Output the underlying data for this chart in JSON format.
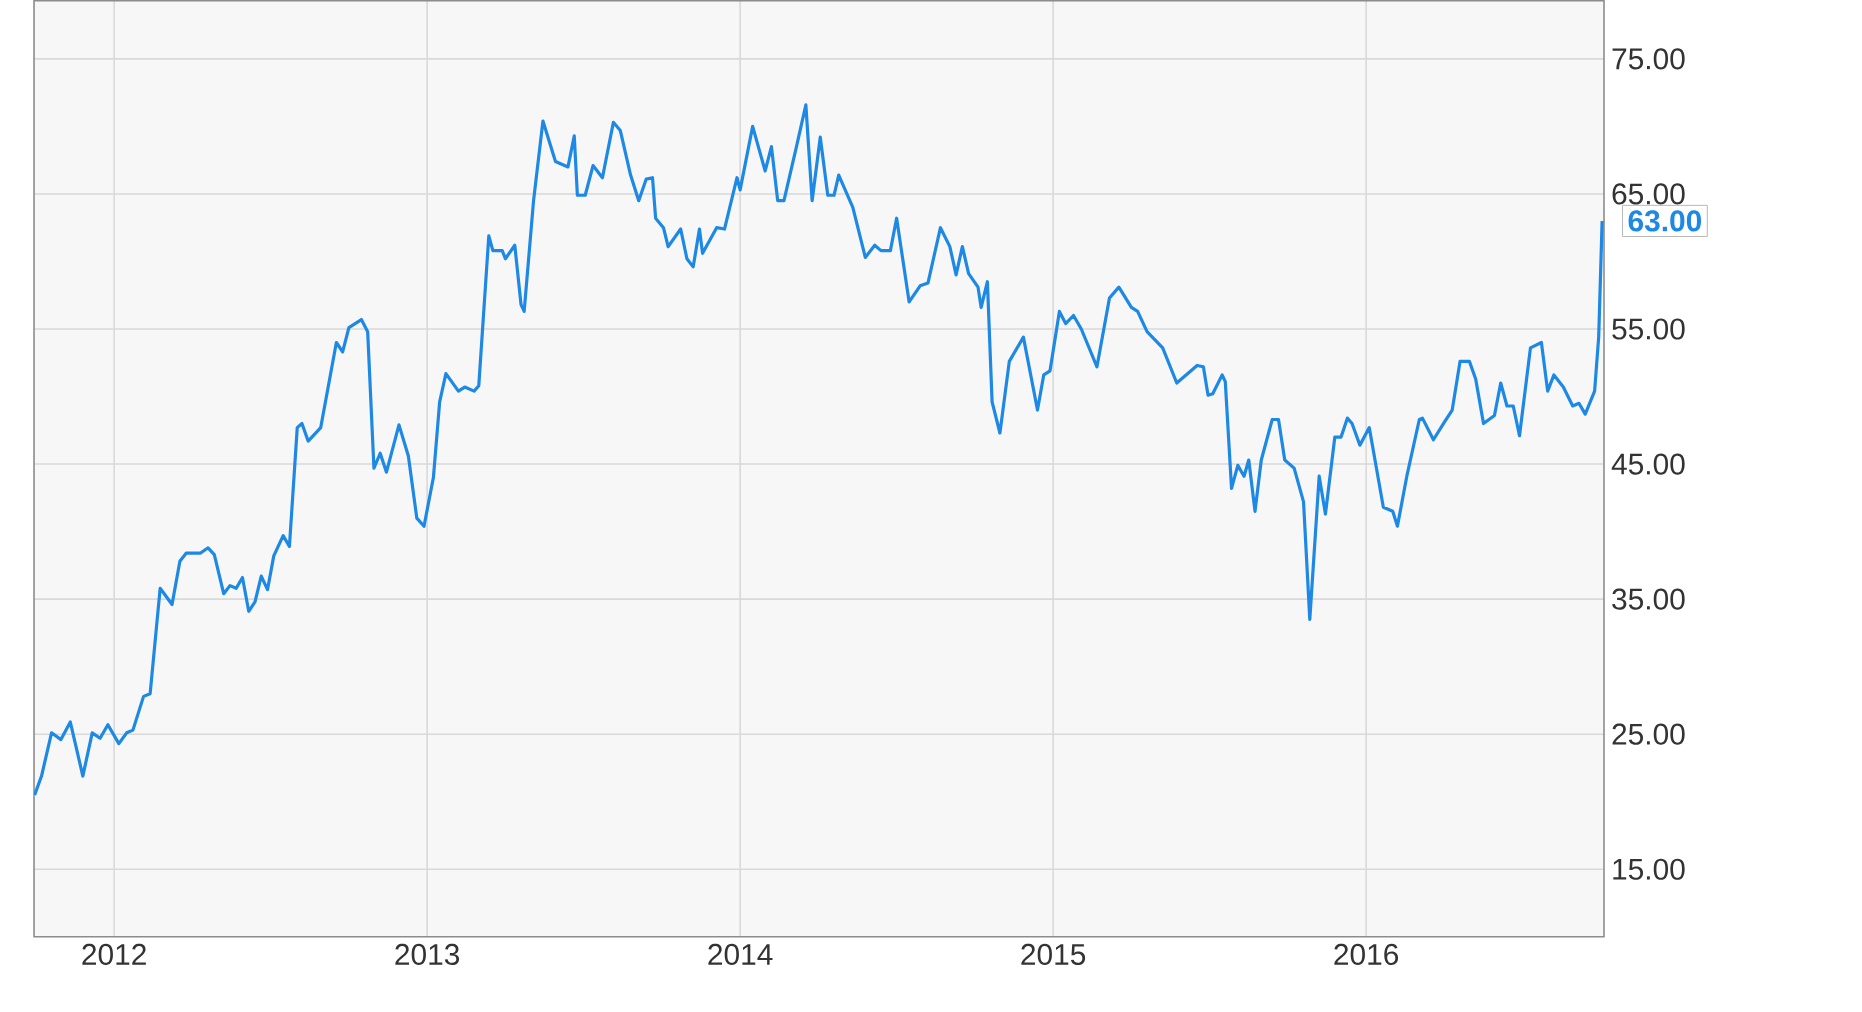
{
  "chart_data": {
    "type": "line",
    "x": [
      2011.746,
      2011.768,
      2011.8,
      2011.83,
      2011.86,
      2011.9,
      2011.93,
      2011.955,
      2011.98,
      2012.015,
      2012.04,
      2012.06,
      2012.094,
      2012.115,
      2012.147,
      2012.185,
      2012.21,
      2012.23,
      2012.275,
      2012.3,
      2012.32,
      2012.35,
      2012.37,
      2012.39,
      2012.41,
      2012.43,
      2012.45,
      2012.47,
      2012.49,
      2012.51,
      2012.54,
      2012.56,
      2012.585,
      2012.6,
      2012.62,
      2012.66,
      2012.71,
      2012.73,
      2012.75,
      2012.79,
      2012.81,
      2012.83,
      2012.85,
      2012.87,
      2012.91,
      2012.94,
      2012.967,
      2012.99,
      2013.02,
      2013.04,
      2013.06,
      2013.1,
      2013.12,
      2013.15,
      2013.165,
      2013.197,
      2013.21,
      2013.24,
      2013.25,
      2013.28,
      2013.3,
      2013.31,
      2013.34,
      2013.37,
      2013.41,
      2013.45,
      2013.47,
      2013.48,
      2013.505,
      2013.53,
      2013.56,
      2013.595,
      2013.617,
      2013.65,
      2013.676,
      2013.7,
      2013.72,
      2013.73,
      2013.755,
      2013.77,
      2013.81,
      2013.83,
      2013.85,
      2013.87,
      2013.88,
      2013.925,
      2013.95,
      2013.99,
      2014.0,
      2014.04,
      2014.08,
      2014.1,
      2014.12,
      2014.14,
      2014.18,
      2014.21,
      2014.23,
      2014.256,
      2014.28,
      2014.3,
      2014.315,
      2014.36,
      2014.4,
      2014.43,
      2014.45,
      2014.48,
      2014.5,
      2014.54,
      2014.575,
      2014.6,
      2014.64,
      2014.67,
      2014.69,
      2014.71,
      2014.73,
      2014.76,
      2014.77,
      2014.79,
      2014.805,
      2014.83,
      2014.86,
      2014.905,
      2014.95,
      2014.97,
      2014.99,
      2015.02,
      2015.04,
      2015.065,
      2015.09,
      2015.14,
      2015.18,
      2015.21,
      2015.25,
      2015.27,
      2015.3,
      2015.35,
      2015.395,
      2015.46,
      2015.48,
      2015.495,
      2015.51,
      2015.54,
      2015.55,
      2015.57,
      2015.59,
      2015.61,
      2015.625,
      2015.645,
      2015.665,
      2015.7,
      2015.72,
      2015.74,
      2015.77,
      2015.8,
      2015.82,
      2015.85,
      2015.87,
      2015.9,
      2015.92,
      2015.94,
      2015.955,
      2015.98,
      2016.01,
      2016.055,
      2016.085,
      2016.1,
      2016.13,
      2016.17,
      2016.18,
      2016.215,
      2016.25,
      2016.275,
      2016.3,
      2016.33,
      2016.35,
      2016.375,
      2016.41,
      2016.43,
      2016.45,
      2016.47,
      2016.49,
      2016.525,
      2016.56,
      2016.58,
      2016.6,
      2016.63,
      2016.66,
      2016.68,
      2016.7,
      2016.73,
      2016.743,
      2016.754
    ],
    "values": [
      20.5,
      21.9,
      25.1,
      24.6,
      25.9,
      21.9,
      25.1,
      24.7,
      25.7,
      24.3,
      25.1,
      25.3,
      27.8,
      28.0,
      35.8,
      34.6,
      37.8,
      38.4,
      38.4,
      38.8,
      38.3,
      35.4,
      36.0,
      35.8,
      36.6,
      34.1,
      34.8,
      36.7,
      35.7,
      38.2,
      39.7,
      38.9,
      47.7,
      48.0,
      46.7,
      47.7,
      54.0,
      53.3,
      55.1,
      55.7,
      54.8,
      44.7,
      45.8,
      44.4,
      47.9,
      45.6,
      41.0,
      40.4,
      44.0,
      49.6,
      51.7,
      50.4,
      50.7,
      50.4,
      50.8,
      61.9,
      60.8,
      60.8,
      60.2,
      61.2,
      56.8,
      56.3,
      64.5,
      70.4,
      67.4,
      67.0,
      69.3,
      64.9,
      64.9,
      67.1,
      66.2,
      70.3,
      69.7,
      66.4,
      64.5,
      66.1,
      66.2,
      63.2,
      62.5,
      61.1,
      62.4,
      60.2,
      59.6,
      62.4,
      60.6,
      62.5,
      62.4,
      66.2,
      65.3,
      70.0,
      66.7,
      68.5,
      64.5,
      64.5,
      68.5,
      71.6,
      64.5,
      69.2,
      64.9,
      64.9,
      66.4,
      64.0,
      60.3,
      61.2,
      60.8,
      60.8,
      63.2,
      57.0,
      58.2,
      58.4,
      62.5,
      61.1,
      59.0,
      61.1,
      59.1,
      58.1,
      56.6,
      58.5,
      49.6,
      47.3,
      52.6,
      54.4,
      49.0,
      51.6,
      51.9,
      56.3,
      55.4,
      56.0,
      55.0,
      52.2,
      57.3,
      58.1,
      56.6,
      56.3,
      54.8,
      53.6,
      51.0,
      52.3,
      52.2,
      50.1,
      50.2,
      51.6,
      51.1,
      43.2,
      44.9,
      44.1,
      45.3,
      41.5,
      45.3,
      48.3,
      48.3,
      45.3,
      44.7,
      42.2,
      33.5,
      44.1,
      41.3,
      47.0,
      47.0,
      48.4,
      48.0,
      46.4,
      47.7,
      41.8,
      41.5,
      40.4,
      44.1,
      48.3,
      48.4,
      46.8,
      48.1,
      49.0,
      52.6,
      52.6,
      51.3,
      48.0,
      48.6,
      51.0,
      49.3,
      49.3,
      47.1,
      53.6,
      54.0,
      50.4,
      51.6,
      50.7,
      49.3,
      49.5,
      48.7,
      50.4,
      54.4,
      63.0
    ],
    "color": "#1e88e5",
    "xlim": [
      2011.744,
      2016.76
    ],
    "xticks": [
      2012,
      2013,
      2014,
      2015,
      2016
    ],
    "ylim": [
      10,
      79.3
    ],
    "yticks": [
      {
        "value": 15,
        "label": "15.00"
      },
      {
        "value": 25,
        "label": "25.00"
      },
      {
        "value": 35,
        "label": "35.00"
      },
      {
        "value": 45,
        "label": "45.00"
      },
      {
        "value": 55,
        "label": "55.00"
      },
      {
        "value": 65,
        "label": "65.00"
      },
      {
        "value": 75,
        "label": "75.00"
      }
    ],
    "grid": true,
    "annotations": [
      {
        "text": "63.00",
        "x": 2016.754,
        "y": 63.0
      }
    ]
  }
}
